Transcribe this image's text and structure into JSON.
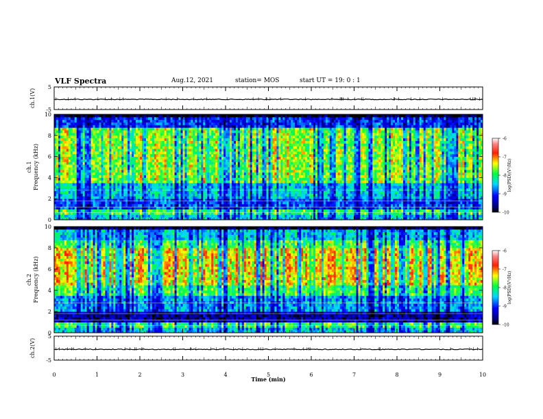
{
  "header": {
    "title": "VLF Spectra",
    "date": "Aug.12, 2021",
    "station": "station= MOS",
    "start": "start  UT =   19: 0  : 1"
  },
  "chart_data": {
    "type": "heatmap",
    "xlabel": "Time  (min)",
    "xlim": [
      0,
      10
    ],
    "xticks": [
      "0",
      "1",
      "2",
      "3",
      "4",
      "5",
      "6",
      "7",
      "8",
      "9",
      "10"
    ],
    "panels": [
      {
        "name": "waveform-ch1",
        "type": "line",
        "ylabel": "ch.1(V)",
        "ylim": [
          -5,
          5
        ],
        "yticks": [
          "5",
          "-5"
        ],
        "level": -0.5
      },
      {
        "name": "spectrogram-ch1",
        "type": "heatmap",
        "ylabel": "ch.1\nFrequency (kHz)",
        "ylim": [
          0,
          10
        ],
        "yticks": [
          "0",
          "2",
          "4",
          "6",
          "8",
          "10"
        ],
        "colorbar": {
          "label": "log(PSD)(V²/Hz)",
          "range": [
            -10,
            -6
          ],
          "ticks": [
            "-6",
            "-7",
            "-8",
            "-9",
            "-10"
          ]
        }
      },
      {
        "name": "spectrogram-ch2",
        "type": "heatmap",
        "ylabel": "ch.2\nFrequency (kHz)",
        "ylim": [
          0,
          10
        ],
        "yticks": [
          "0",
          "2",
          "4",
          "6",
          "8",
          "10"
        ],
        "colorbar": {
          "label": "log(PSD)(V²/Hz)",
          "range": [
            -10,
            -6
          ],
          "ticks": [
            "-6",
            "-7",
            "-8",
            "-9",
            "-10"
          ]
        }
      },
      {
        "name": "waveform-ch2",
        "type": "line",
        "ylabel": "ch.2(V)",
        "ylim": [
          -5,
          5
        ],
        "yticks": [
          "5",
          "-5"
        ],
        "level": -0.5
      }
    ]
  }
}
